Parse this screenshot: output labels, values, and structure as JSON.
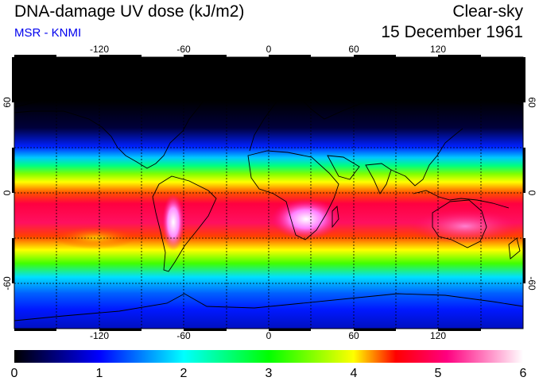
{
  "header": {
    "title": "DNA-damage UV dose (kJ/m2)",
    "subtitle": "MSR - KNMI",
    "sky": "Clear-sky",
    "date": "15 December 1961"
  },
  "map": {
    "projection": "equirectangular",
    "longitude_labels": [
      "-120",
      "-60",
      "0",
      "60",
      "120"
    ],
    "latitude_labels": [
      "60",
      "0",
      "-60"
    ],
    "gridline_style": "dashed",
    "coastlines": true
  },
  "colorbar": {
    "min": 0,
    "max": 6,
    "tick_labels": [
      "0",
      "1",
      "2",
      "3",
      "4",
      "5",
      "6"
    ],
    "colors": [
      "#000000",
      "#0000ff",
      "#00ffff",
      "#00ff00",
      "#ffff00",
      "#ff0000",
      "#ff00aa",
      "#ffffff"
    ]
  }
}
